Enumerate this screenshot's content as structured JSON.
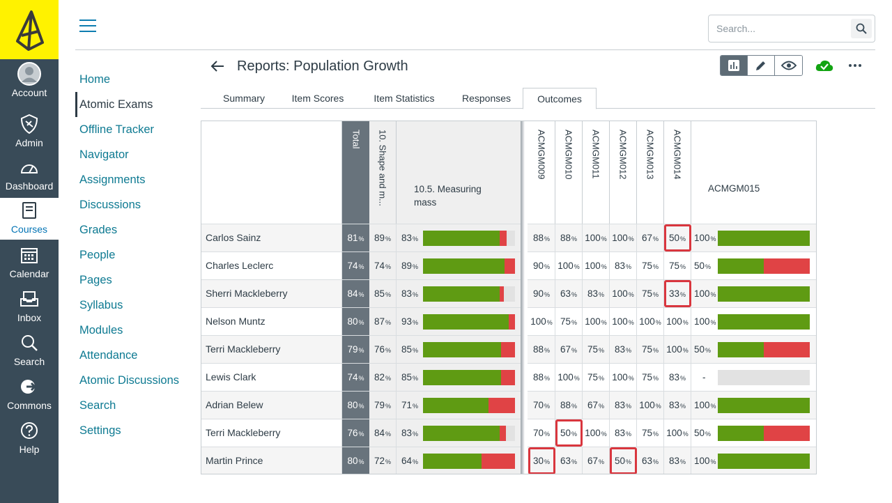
{
  "global_nav": {
    "items": [
      {
        "label": "Account",
        "icon": "avatar-icon"
      },
      {
        "label": "Admin",
        "icon": "shield-icon"
      },
      {
        "label": "Dashboard",
        "icon": "dashboard-icon"
      },
      {
        "label": "Courses",
        "icon": "book-icon"
      },
      {
        "label": "Calendar",
        "icon": "calendar-icon"
      },
      {
        "label": "Inbox",
        "icon": "inbox-icon"
      },
      {
        "label": "Search",
        "icon": "search-icon"
      },
      {
        "label": "Commons",
        "icon": "commons-icon"
      },
      {
        "label": "Help",
        "icon": "help-icon"
      }
    ],
    "active": "Courses",
    "logo_color": "#fff200",
    "bg_color": "#394b58"
  },
  "course_nav": {
    "items": [
      {
        "label": "Home"
      },
      {
        "label": "Atomic Exams"
      },
      {
        "label": "Offline Tracker"
      },
      {
        "label": "Navigator"
      },
      {
        "label": "Assignments"
      },
      {
        "label": "Discussions"
      },
      {
        "label": "Grades"
      },
      {
        "label": "People"
      },
      {
        "label": "Pages"
      },
      {
        "label": "Syllabus"
      },
      {
        "label": "Modules"
      },
      {
        "label": "Attendance"
      },
      {
        "label": "Atomic Discussions"
      },
      {
        "label": "Search"
      },
      {
        "label": "Settings"
      }
    ],
    "active": "Atomic Exams"
  },
  "search": {
    "placeholder": "Search..."
  },
  "page": {
    "title": "Reports: Population Growth"
  },
  "tabs": [
    {
      "label": "Summary"
    },
    {
      "label": "Item Scores"
    },
    {
      "label": "Item Statistics"
    },
    {
      "label": "Responses"
    },
    {
      "label": "Outcomes"
    }
  ],
  "active_tab": "Outcomes",
  "table": {
    "headers": {
      "total": "Total",
      "group": "10. Shape and m...",
      "sub": "10.5. Measuring mass",
      "outcomes": [
        "ACMGM009",
        "ACMGM010",
        "ACMGM011",
        "ACMGM012",
        "ACMGM013",
        "ACMGM014",
        "ACMGM015"
      ]
    },
    "percent_symbol": "%",
    "rows": [
      {
        "name": "Carlos Sainz",
        "total": "81",
        "group": "89",
        "sub": "83",
        "sub_fill": [
          0.83,
          0.08
        ],
        "o": [
          "88",
          "88",
          "100",
          "100",
          "67",
          "50",
          "100"
        ],
        "bar15": [
          1.0,
          0.0
        ]
      },
      {
        "name": "Charles Leclerc",
        "total": "74",
        "group": "74",
        "sub": "89",
        "sub_fill": [
          0.89,
          0.11
        ],
        "o": [
          "90",
          "100",
          "100",
          "83",
          "75",
          "75",
          "50"
        ],
        "bar15": [
          0.5,
          0.5
        ]
      },
      {
        "name": "Sherri Mackleberry",
        "total": "84",
        "group": "85",
        "sub": "83",
        "sub_fill": [
          0.83,
          0.05
        ],
        "o": [
          "90",
          "63",
          "83",
          "100",
          "75",
          "33",
          "100"
        ],
        "bar15": [
          1.0,
          0.0
        ]
      },
      {
        "name": "Nelson Muntz",
        "total": "80",
        "group": "87",
        "sub": "93",
        "sub_fill": [
          0.93,
          0.07
        ],
        "o": [
          "100",
          "75",
          "100",
          "100",
          "100",
          "100",
          "100"
        ],
        "bar15": [
          1.0,
          0.0
        ]
      },
      {
        "name": "Terri Mackleberry",
        "total": "79",
        "group": "76",
        "sub": "85",
        "sub_fill": [
          0.85,
          0.15
        ],
        "o": [
          "88",
          "67",
          "75",
          "83",
          "75",
          "100",
          "50"
        ],
        "bar15": [
          0.5,
          0.5
        ]
      },
      {
        "name": "Lewis Clark",
        "total": "74",
        "group": "82",
        "sub": "85",
        "sub_fill": [
          0.85,
          0.15
        ],
        "o": [
          "88",
          "100",
          "75",
          "100",
          "75",
          "83",
          "-"
        ],
        "bar15": [
          0.0,
          0.0
        ]
      },
      {
        "name": "Adrian Belew",
        "total": "80",
        "group": "79",
        "sub": "71",
        "sub_fill": [
          0.71,
          0.29
        ],
        "o": [
          "70",
          "88",
          "67",
          "83",
          "100",
          "83",
          "100"
        ],
        "bar15": [
          1.0,
          0.0
        ]
      },
      {
        "name": "Terri Mackleberry",
        "total": "76",
        "group": "84",
        "sub": "83",
        "sub_fill": [
          0.83,
          0.07
        ],
        "o": [
          "70",
          "50",
          "100",
          "83",
          "75",
          "100",
          "50"
        ],
        "bar15": [
          0.5,
          0.5
        ]
      },
      {
        "name": "Martin Prince",
        "total": "80",
        "group": "72",
        "sub": "64",
        "sub_fill": [
          0.64,
          0.36
        ],
        "o": [
          "30",
          "63",
          "67",
          "50",
          "63",
          "83",
          "100"
        ],
        "bar15": [
          1.0,
          0.0
        ]
      }
    ],
    "highlighted": [
      [
        0,
        5
      ],
      [
        2,
        5
      ],
      [
        7,
        1
      ],
      [
        8,
        0
      ],
      [
        8,
        3
      ]
    ],
    "colors": {
      "green": "#5f9b13",
      "red": "#e04345",
      "empty": "#e2e2e2",
      "total_col": "#68737c",
      "highlight": "#d9363e"
    }
  }
}
